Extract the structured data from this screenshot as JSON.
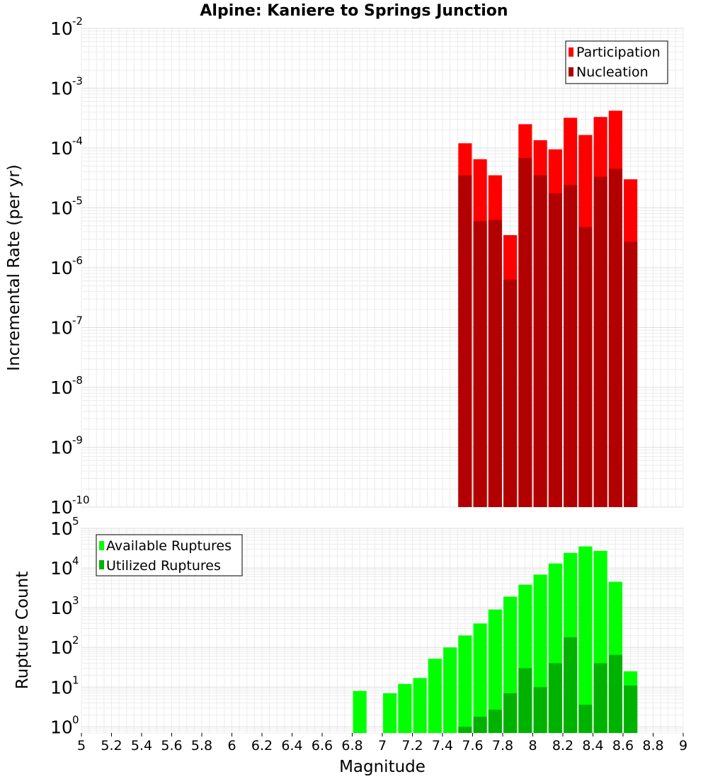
{
  "title": "Alpine: Kaniere to Springs Junction",
  "chart_data": [
    {
      "type": "bar",
      "ylabel": "Incremental Rate (per yr)",
      "xlabel": "",
      "y_scale": "log",
      "ylim": [
        1e-10,
        0.01
      ],
      "xlim": [
        5,
        9
      ],
      "y_tick_exponents": [
        "-10",
        "-9",
        "-8",
        "-7",
        "-6",
        "-5",
        "-4",
        "-3",
        "-2"
      ],
      "grid": true,
      "legend_position": "top-right",
      "bar_width": 0.09,
      "x": [
        7.55,
        7.65,
        7.75,
        7.85,
        7.95,
        8.05,
        8.15,
        8.25,
        8.35,
        8.45,
        8.55,
        8.65
      ],
      "series": [
        {
          "name": "Participation",
          "color": "#ff0000",
          "values": [
            0.00012,
            6.5e-05,
            3.5e-05,
            3.5e-06,
            0.00025,
            0.000135,
            9.5e-05,
            0.00032,
            0.000165,
            0.00033,
            0.00042,
            3e-05
          ]
        },
        {
          "name": "Nucleation",
          "color": "#b20000",
          "values": [
            3.5e-05,
            6e-06,
            6.3e-06,
            6.3e-07,
            6.8e-05,
            3.5e-05,
            1.75e-05,
            2.4e-05,
            4.8e-06,
            3.3e-05,
            4.5e-05,
            2.7e-06
          ]
        }
      ]
    },
    {
      "type": "bar",
      "ylabel": "Rupture Count",
      "xlabel": "Magnitude",
      "y_scale": "log",
      "ylim": [
        0.7,
        100000.0
      ],
      "xlim": [
        5,
        9
      ],
      "y_tick_exponents": [
        "0",
        "1",
        "2",
        "3",
        "4",
        "5"
      ],
      "x_tick_labels": [
        "5",
        "5.2",
        "5.4",
        "5.6",
        "5.8",
        "6",
        "6.2",
        "6.4",
        "6.6",
        "6.8",
        "7",
        "7.2",
        "7.4",
        "7.6",
        "7.8",
        "8",
        "8.2",
        "8.4",
        "8.6",
        "8.8",
        "9"
      ],
      "grid": true,
      "legend_position": "top-left",
      "bar_width": 0.09,
      "series": [
        {
          "name": "Available Ruptures",
          "color": "#00ff00",
          "x": [
            6.85,
            7.05,
            7.15,
            7.25,
            7.35,
            7.45,
            7.55,
            7.65,
            7.75,
            7.85,
            7.95,
            8.05,
            8.15,
            8.25,
            8.35,
            8.45,
            8.55,
            8.65
          ],
          "values": [
            8,
            7,
            12,
            17,
            52,
            100,
            200,
            400,
            900,
            1900,
            3800,
            6800,
            13000,
            24000,
            35000,
            27000,
            4500,
            25
          ]
        },
        {
          "name": "Utilized Ruptures",
          "color": "#00b200",
          "x": [
            7.55,
            7.65,
            7.75,
            7.85,
            7.95,
            8.05,
            8.15,
            8.25,
            8.35,
            8.45,
            8.55,
            8.65
          ],
          "values": [
            1,
            1.8,
            2.7,
            7,
            30,
            10,
            40,
            180,
            3.6,
            40,
            65,
            11
          ]
        }
      ]
    }
  ]
}
